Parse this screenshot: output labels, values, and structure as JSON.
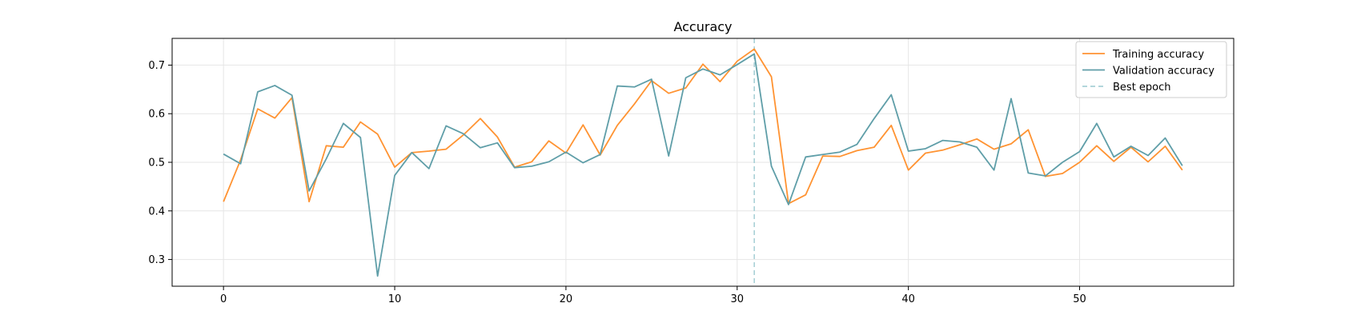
{
  "chart_data": {
    "type": "line",
    "title": "Accuracy",
    "xlabel": "",
    "ylabel": "",
    "xlim": [
      -3,
      59
    ],
    "ylim": [
      0.245,
      0.755
    ],
    "xticks": [
      0,
      10,
      20,
      30,
      40,
      50
    ],
    "yticks": [
      0.3,
      0.4,
      0.5,
      0.6,
      0.7
    ],
    "grid": true,
    "legend_position": "top-right",
    "x": [
      0,
      1,
      2,
      3,
      4,
      5,
      6,
      7,
      8,
      9,
      10,
      11,
      12,
      13,
      14,
      15,
      16,
      17,
      18,
      19,
      20,
      21,
      22,
      23,
      24,
      25,
      26,
      27,
      28,
      29,
      30,
      31,
      32,
      33,
      34,
      35,
      36,
      37,
      38,
      39,
      40,
      41,
      42,
      43,
      44,
      45,
      46,
      47,
      48,
      49,
      50,
      51,
      52,
      53,
      54,
      55,
      56
    ],
    "series": [
      {
        "name": "Training accuracy",
        "color": "#ff9332",
        "values": [
          0.419,
          0.505,
          0.61,
          0.591,
          0.633,
          0.419,
          0.534,
          0.531,
          0.583,
          0.558,
          0.49,
          0.52,
          0.523,
          0.527,
          0.556,
          0.59,
          0.552,
          0.49,
          0.501,
          0.544,
          0.519,
          0.577,
          0.515,
          0.576,
          0.62,
          0.668,
          0.642,
          0.653,
          0.702,
          0.666,
          0.708,
          0.733,
          0.676,
          0.415,
          0.433,
          0.513,
          0.512,
          0.524,
          0.531,
          0.576,
          0.484,
          0.519,
          0.525,
          0.536,
          0.548,
          0.527,
          0.538,
          0.567,
          0.471,
          0.477,
          0.5,
          0.534,
          0.502,
          0.531,
          0.501,
          0.533,
          0.484
        ]
      },
      {
        "name": "Validation accuracy",
        "color": "#5f9ea8",
        "values": [
          0.517,
          0.497,
          0.645,
          0.658,
          0.638,
          0.441,
          0.507,
          0.58,
          0.551,
          0.266,
          0.473,
          0.52,
          0.487,
          0.575,
          0.559,
          0.53,
          0.54,
          0.489,
          0.492,
          0.501,
          0.521,
          0.499,
          0.516,
          0.657,
          0.655,
          0.671,
          0.513,
          0.674,
          0.692,
          0.68,
          0.701,
          0.723,
          0.492,
          0.413,
          0.511,
          0.516,
          0.521,
          0.537,
          0.59,
          0.639,
          0.523,
          0.528,
          0.545,
          0.542,
          0.531,
          0.484,
          0.631,
          0.478,
          0.472,
          0.5,
          0.522,
          0.58,
          0.511,
          0.533,
          0.514,
          0.55,
          0.493
        ]
      }
    ],
    "best_epoch": {
      "name": "Best epoch",
      "x": 31,
      "color": "#a8d0d6",
      "style": "dashed"
    }
  }
}
